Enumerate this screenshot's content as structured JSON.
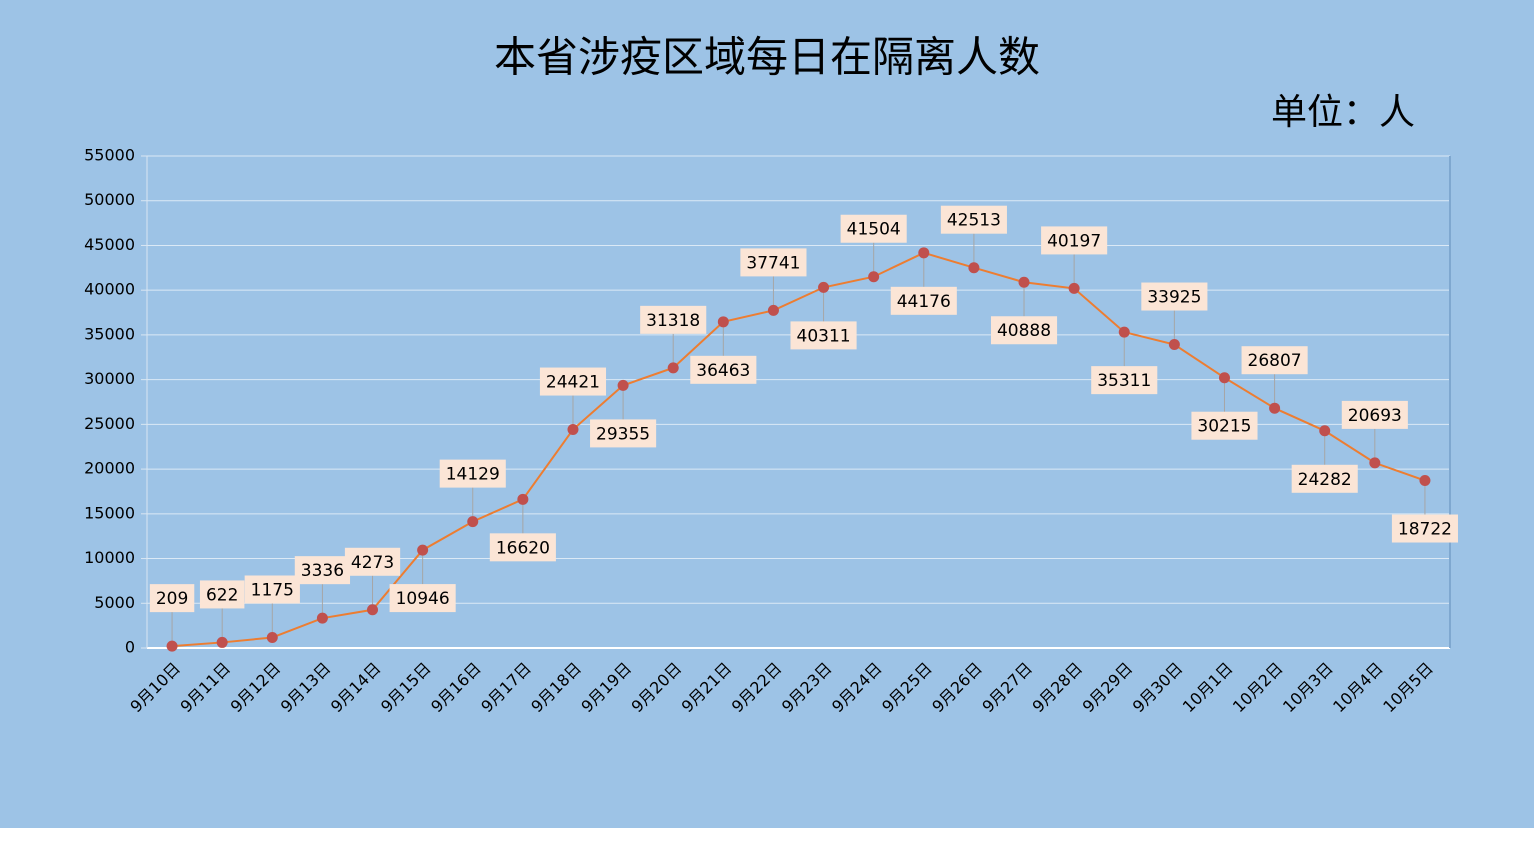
{
  "chart_data": {
    "type": "line",
    "title": "本省涉疫区域每日在隔离人数",
    "subtitle": "单位：人",
    "categories": [
      "9月10日",
      "9月11日",
      "9月12日",
      "9月13日",
      "9月14日",
      "9月15日",
      "9月16日",
      "9月17日",
      "9月18日",
      "9月19日",
      "9月20日",
      "9月21日",
      "9月22日",
      "9月23日",
      "9月24日",
      "9月25日",
      "9月26日",
      "9月27日",
      "9月28日",
      "9月29日",
      "9月30日",
      "10月1日",
      "10月2日",
      "10月3日",
      "10月4日",
      "10月5日"
    ],
    "values": [
      209,
      622,
      1175,
      3336,
      4273,
      10946,
      14129,
      16620,
      24421,
      29355,
      31318,
      36463,
      37741,
      40311,
      41504,
      44176,
      42513,
      40888,
      40197,
      35311,
      33925,
      30215,
      26807,
      24282,
      20693,
      18722
    ],
    "color": "#ed7d31",
    "marker_color": "#c0504d",
    "ylim": [
      0,
      55000
    ],
    "yticks": [
      0,
      5000,
      10000,
      15000,
      20000,
      25000,
      30000,
      35000,
      40000,
      45000,
      50000,
      55000
    ],
    "grid": true
  }
}
